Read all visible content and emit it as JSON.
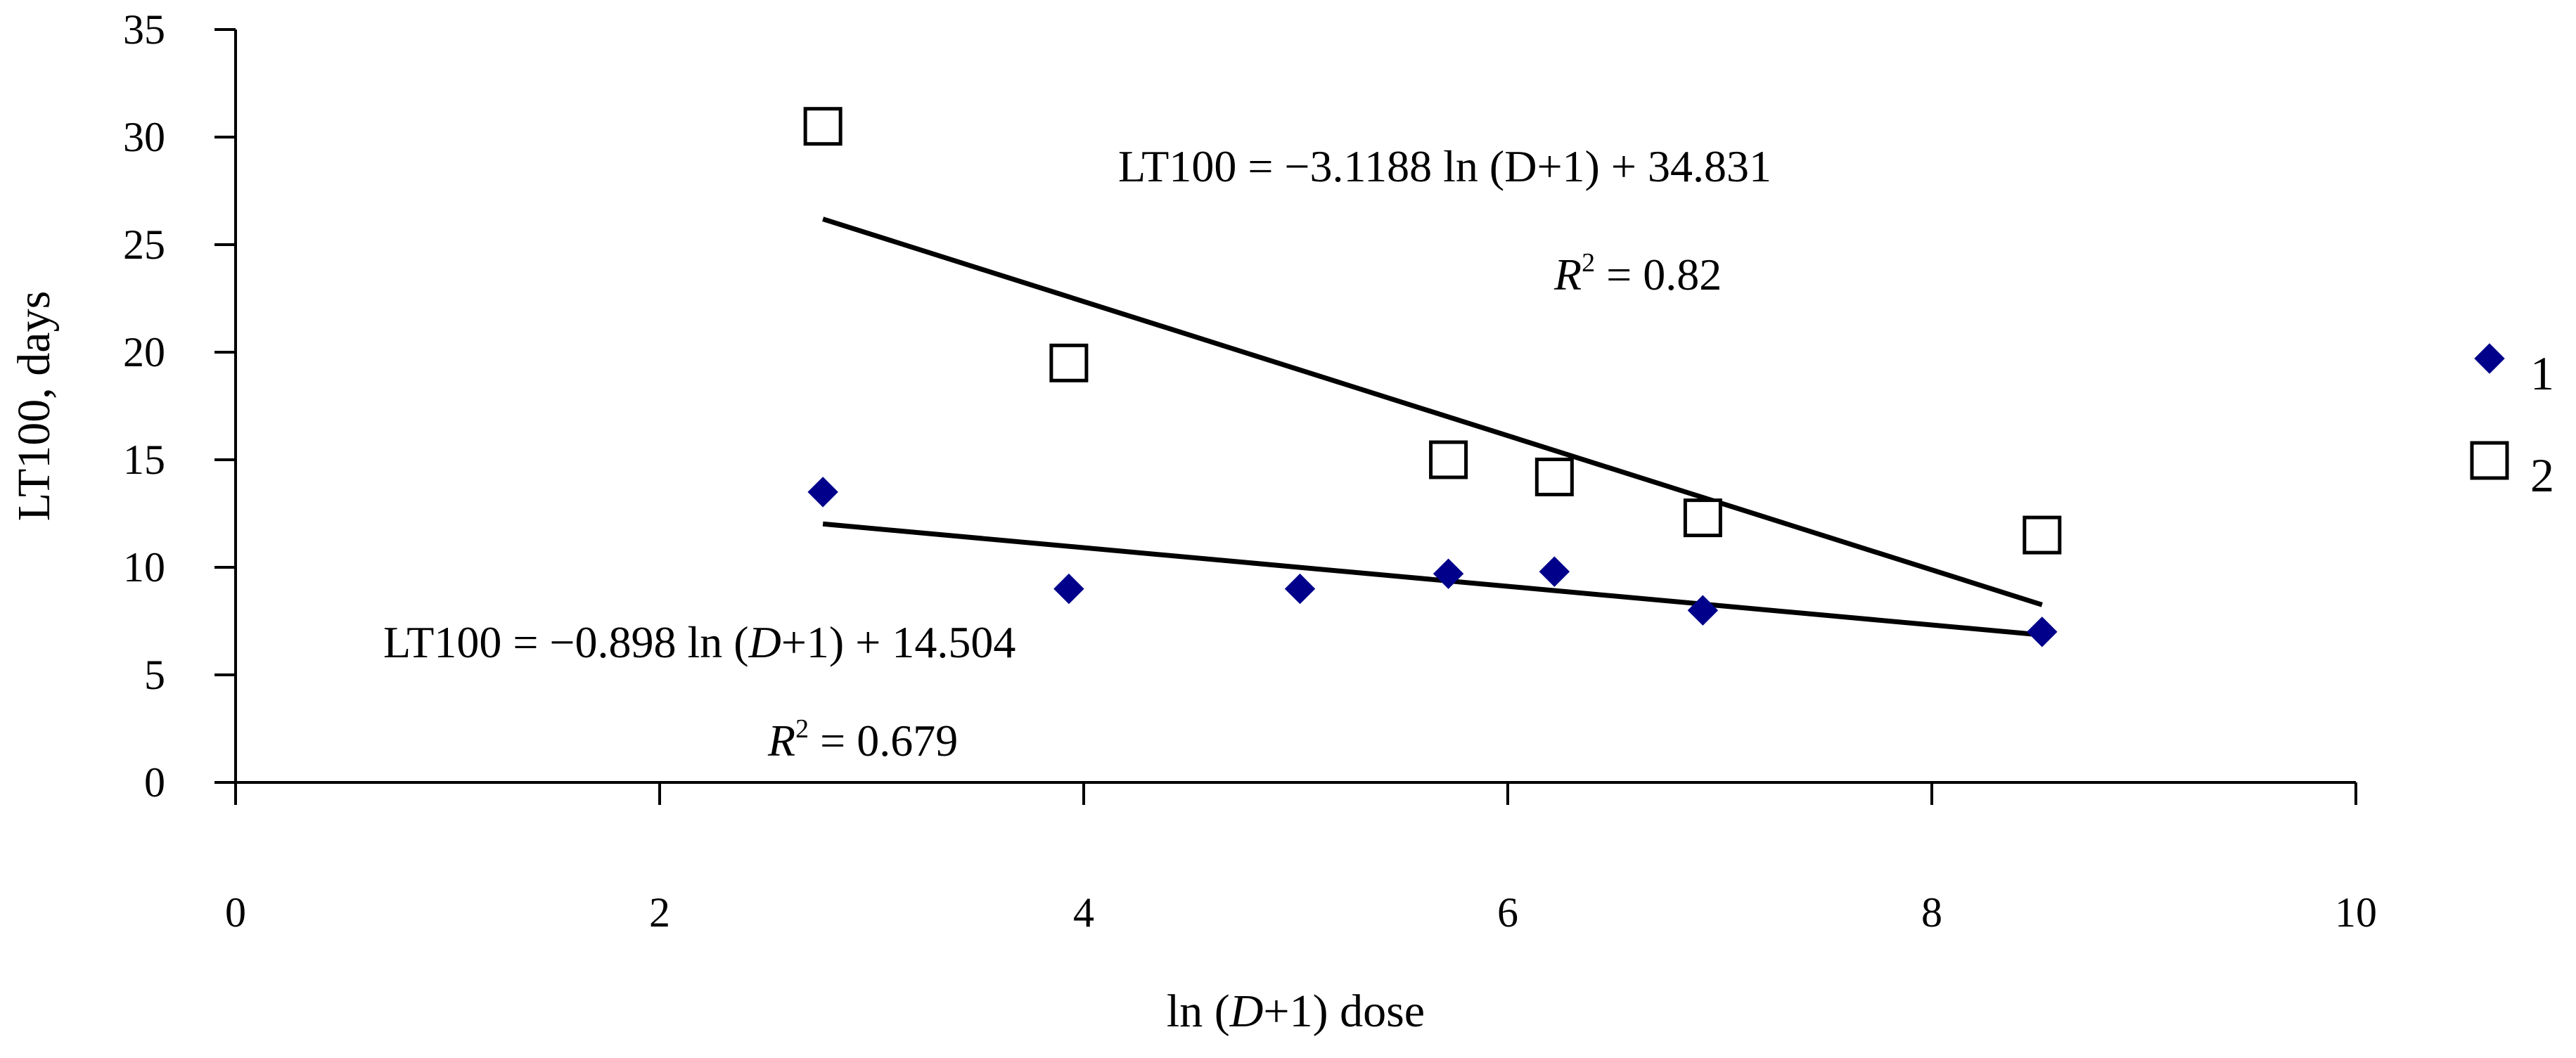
{
  "chart_data": {
    "type": "scatter",
    "title": "",
    "xlabel": "ln (D+1) dose",
    "ylabel": "LT100, days",
    "xlim": [
      0,
      10
    ],
    "ylim": [
      0,
      35
    ],
    "xticks": [
      0,
      2,
      4,
      6,
      8,
      10
    ],
    "yticks": [
      0,
      5,
      10,
      15,
      20,
      25,
      30,
      35
    ],
    "series": [
      {
        "name": "1",
        "marker": "filled-diamond",
        "color": "#00008B",
        "x": [
          2.77,
          3.93,
          5.02,
          5.72,
          6.22,
          6.92,
          8.52
        ],
        "y": [
          13.5,
          9.0,
          9.0,
          9.7,
          9.8,
          8.0,
          7.0
        ],
        "trendline": {
          "slope": -0.898,
          "intercept": 14.504,
          "x_range": [
            2.77,
            8.52
          ],
          "equation": {
            "pre": "LT100 = −0.898 ln (",
            "var": "D",
            "post": "+1) + 14.504"
          },
          "r2": {
            "symbol": "R",
            "power": "2",
            "value": "= 0.679"
          }
        }
      },
      {
        "name": "2",
        "marker": "open-square",
        "color": "#000000",
        "x": [
          2.77,
          3.93,
          5.72,
          6.22,
          6.92,
          8.52
        ],
        "y": [
          30.5,
          19.5,
          15.0,
          14.2,
          12.3,
          11.5
        ],
        "trendline": {
          "slope": -3.1188,
          "intercept": 34.831,
          "x_range": [
            2.77,
            8.52
          ],
          "equation": {
            "pre": "LT100 = −3.1188 ln (D+1) + 34.831",
            "var": "",
            "post": ""
          },
          "r2": {
            "symbol": "R",
            "power": "2",
            "value": "= 0.82"
          }
        }
      }
    ],
    "xlabel_parts": {
      "pre": "ln (",
      "var": "D",
      "post": "+1) dose"
    },
    "legend": [
      {
        "label": "1",
        "marker": "filled-diamond"
      },
      {
        "label": "2",
        "marker": "open-square"
      }
    ],
    "legend_position": "right"
  }
}
